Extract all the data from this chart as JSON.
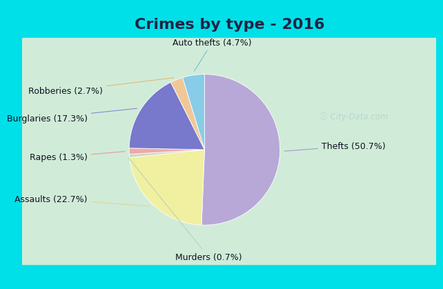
{
  "title": "Crimes by type - 2016",
  "labels": [
    "Thefts",
    "Assaults",
    "Murders",
    "Rapes",
    "Burglaries",
    "Robberies",
    "Auto thefts"
  ],
  "display_labels": [
    "Thefts (50.7%)",
    "Assaults (22.7%)",
    "Murders (0.7%)",
    "Rapes (1.3%)",
    "Burglaries (17.3%)",
    "Robberies (2.7%)",
    "Auto thefts (4.7%)"
  ],
  "values": [
    50.7,
    22.7,
    0.7,
    1.3,
    17.3,
    2.7,
    4.7
  ],
  "colors": [
    "#b8a8d8",
    "#f0f0a0",
    "#c8d8c0",
    "#f0a8a8",
    "#7878cc",
    "#f0c898",
    "#88cce8"
  ],
  "bg_cyan": "#00e0e8",
  "bg_main": "#d0ecd8",
  "title_fontsize": 16,
  "label_fontsize": 9,
  "title_color": "#222244",
  "label_color": "#111122",
  "line_color_thefts": "#a898cc",
  "line_color_assaults": "#d8d898",
  "line_color_murders": "#c0d0b8",
  "line_color_rapes": "#e89898",
  "line_color_burglaries": "#8888cc",
  "line_color_robberies": "#e0b878",
  "line_color_autothefts": "#78bcd8"
}
